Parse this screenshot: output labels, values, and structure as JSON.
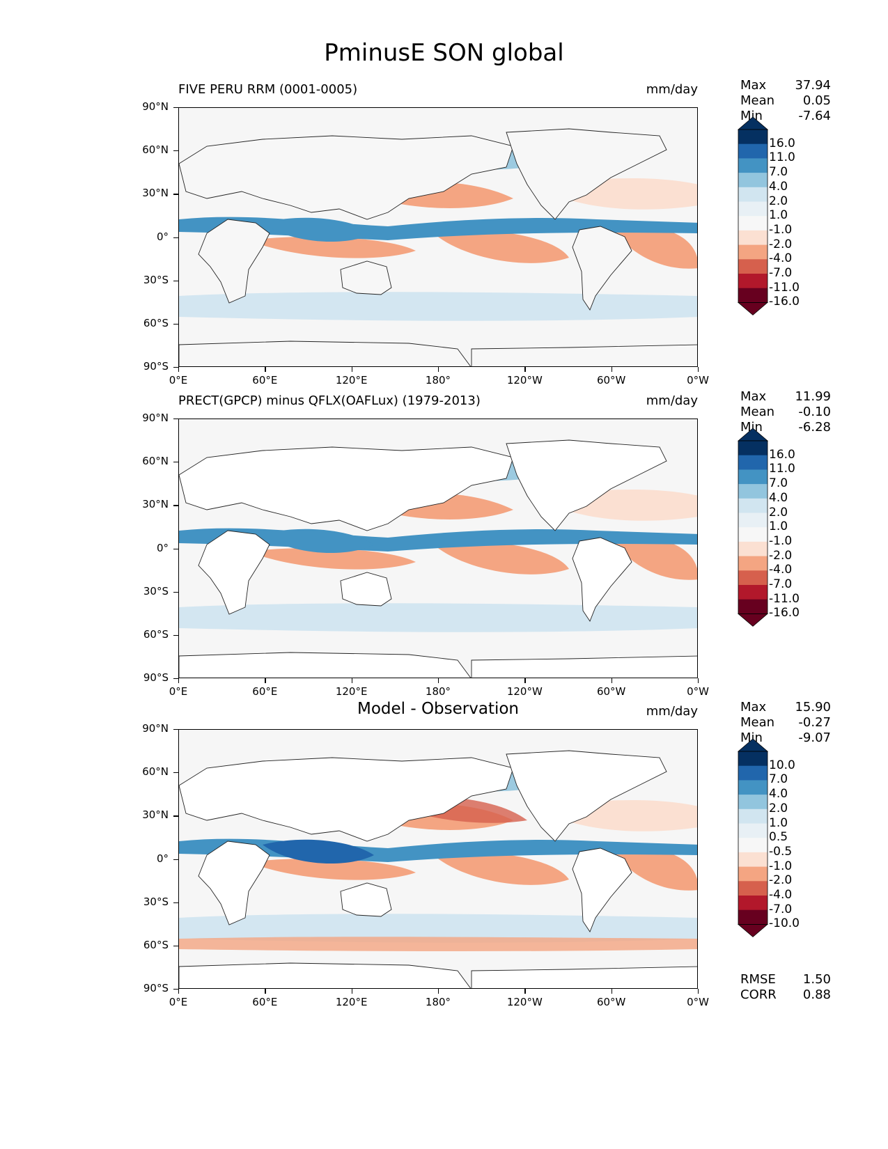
{
  "figure_title": "PminusE SON global",
  "chart_data": [
    {
      "type": "heatmap",
      "title": "FIVE PERU RRM (0001-0005)",
      "units": "mm/day",
      "stats": [
        {
          "label": "Max",
          "value": "37.94"
        },
        {
          "label": "Mean",
          "value": "0.05"
        },
        {
          "label": "Min",
          "value": "-7.64"
        }
      ],
      "colorbar": {
        "levels": [
          "16.0",
          "11.0",
          "7.0",
          "4.0",
          "2.0",
          "1.0",
          "-1.0",
          "-2.0",
          "-4.0",
          "-7.0",
          "-11.0",
          "-16.0"
        ],
        "colors": [
          "#053061",
          "#2166ac",
          "#4393c3",
          "#92c5de",
          "#d1e5f0",
          "#e8f0f5",
          "#f7f7f7",
          "#fbe0d2",
          "#f4a582",
          "#d6604d",
          "#b2182b",
          "#67001f"
        ]
      },
      "ylabels": [
        "90°N",
        "60°N",
        "30°N",
        "0°",
        "30°S",
        "60°S",
        "90°S"
      ],
      "xlabels": [
        "0°E",
        "60°E",
        "120°E",
        "180°",
        "120°W",
        "60°W",
        "0°W"
      ]
    },
    {
      "type": "heatmap",
      "title": "PRECT(GPCP) minus QFLX(OAFLux) (1979-2013)",
      "units": "mm/day",
      "stats": [
        {
          "label": "Max",
          "value": "11.99"
        },
        {
          "label": "Mean",
          "value": "-0.10"
        },
        {
          "label": "Min",
          "value": "-6.28"
        }
      ],
      "colorbar": {
        "levels": [
          "16.0",
          "11.0",
          "7.0",
          "4.0",
          "2.0",
          "1.0",
          "-1.0",
          "-2.0",
          "-4.0",
          "-7.0",
          "-11.0",
          "-16.0"
        ],
        "colors": [
          "#053061",
          "#2166ac",
          "#4393c3",
          "#92c5de",
          "#d1e5f0",
          "#e8f0f5",
          "#f7f7f7",
          "#fbe0d2",
          "#f4a582",
          "#d6604d",
          "#b2182b",
          "#67001f"
        ]
      },
      "ylabels": [
        "90°N",
        "60°N",
        "30°N",
        "0°",
        "30°S",
        "60°S",
        "90°S"
      ],
      "xlabels": [
        "0°E",
        "60°E",
        "120°E",
        "180°",
        "120°W",
        "60°W",
        "0°W"
      ]
    },
    {
      "type": "heatmap",
      "title": "Model - Observation",
      "units": "mm/day",
      "stats": [
        {
          "label": "Max",
          "value": "15.90"
        },
        {
          "label": "Mean",
          "value": "-0.27"
        },
        {
          "label": "Min",
          "value": "-9.07"
        }
      ],
      "colorbar": {
        "levels": [
          "10.0",
          "7.0",
          "4.0",
          "2.0",
          "1.0",
          "0.5",
          "-0.5",
          "-1.0",
          "-2.0",
          "-4.0",
          "-7.0",
          "-10.0"
        ],
        "colors": [
          "#053061",
          "#2166ac",
          "#4393c3",
          "#92c5de",
          "#d1e5f0",
          "#e8f0f5",
          "#f7f7f7",
          "#fbe0d2",
          "#f4a582",
          "#d6604d",
          "#b2182b",
          "#67001f"
        ]
      },
      "ylabels": [
        "90°N",
        "60°N",
        "30°N",
        "0°",
        "30°S",
        "60°S",
        "90°S"
      ],
      "xlabels": [
        "0°E",
        "60°E",
        "120°E",
        "180°",
        "120°W",
        "60°W",
        "0°W"
      ],
      "metrics": [
        {
          "label": "RMSE",
          "value": "1.50"
        },
        {
          "label": "CORR",
          "value": "0.88"
        }
      ]
    }
  ]
}
